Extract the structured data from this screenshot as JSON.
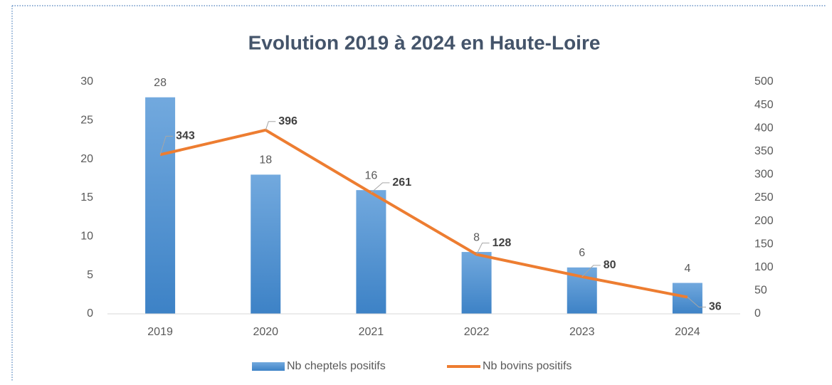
{
  "chart_data": {
    "type": "bar-line",
    "title": "Evolution 2019 à 2024 en Haute-Loire",
    "categories": [
      "2019",
      "2020",
      "2021",
      "2022",
      "2023",
      "2024"
    ],
    "series": [
      {
        "name": "Nb cheptels positifs",
        "type": "bar",
        "color": "#5b9bd5",
        "values": [
          28,
          18,
          16,
          8,
          6,
          4
        ],
        "axis": "y"
      },
      {
        "name": "Nb bovins positifs",
        "type": "line",
        "color": "#ed7d31",
        "values": [
          343,
          396,
          261,
          128,
          80,
          36
        ],
        "axis": "y2"
      }
    ],
    "ylim": [
      0,
      30
    ],
    "yticks": [
      0,
      5,
      10,
      15,
      20,
      25,
      30
    ],
    "y2lim": [
      0,
      500
    ],
    "y2ticks": [
      0,
      50,
      100,
      150,
      200,
      250,
      300,
      350,
      400,
      450,
      500
    ],
    "legend": "bottom",
    "grid": false
  }
}
